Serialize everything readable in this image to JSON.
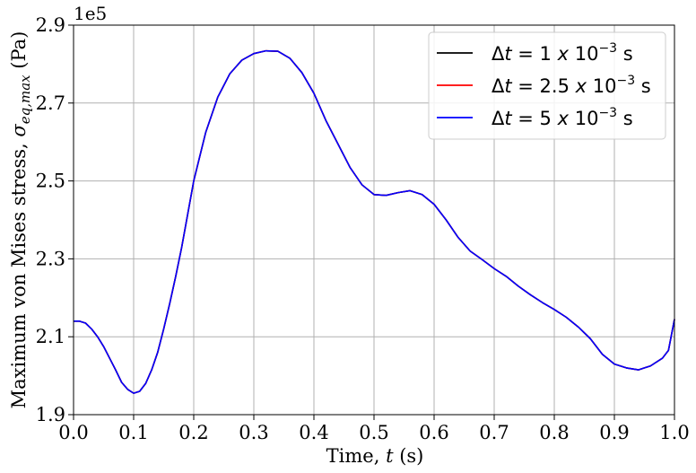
{
  "chart_data": {
    "type": "line",
    "xlabel": "Time, t (s)",
    "ylabel": "Maximum von Mises stress, σ_eq,max (Pa)",
    "xlim": [
      0.0,
      1.0
    ],
    "ylim": [
      190000,
      290000
    ],
    "x_ticks": [
      0.0,
      0.1,
      0.2,
      0.3,
      0.4,
      0.5,
      0.6,
      0.7,
      0.8,
      0.9,
      1.0
    ],
    "x_tick_labels": [
      "0.0",
      "0.1",
      "0.2",
      "0.3",
      "0.4",
      "0.5",
      "0.6",
      "0.7",
      "0.8",
      "0.9",
      "1.0"
    ],
    "y_ticks": [
      190000,
      210000,
      230000,
      250000,
      270000,
      290000
    ],
    "y_tick_labels": [
      "1.9",
      "2.1",
      "2.3",
      "2.5",
      "2.7",
      "2.9"
    ],
    "y_offset_label": "1e5",
    "grid": true,
    "legend_position": "top-right",
    "series": [
      {
        "name": "Δt = 1 x 10⁻³ s",
        "color": "#000000"
      },
      {
        "name": "Δt = 2.5 x 10⁻³ s",
        "color": "#ff0000"
      },
      {
        "name": "Δt = 5 x 10⁻³ s",
        "color": "#0000ff"
      }
    ],
    "x": [
      0.0,
      0.01,
      0.02,
      0.03,
      0.04,
      0.05,
      0.06,
      0.07,
      0.08,
      0.09,
      0.1,
      0.11,
      0.12,
      0.13,
      0.14,
      0.15,
      0.16,
      0.17,
      0.18,
      0.19,
      0.2,
      0.22,
      0.24,
      0.26,
      0.28,
      0.3,
      0.32,
      0.34,
      0.36,
      0.38,
      0.4,
      0.42,
      0.44,
      0.46,
      0.48,
      0.5,
      0.52,
      0.54,
      0.56,
      0.58,
      0.6,
      0.62,
      0.64,
      0.66,
      0.68,
      0.7,
      0.72,
      0.74,
      0.76,
      0.78,
      0.8,
      0.82,
      0.84,
      0.86,
      0.88,
      0.9,
      0.92,
      0.94,
      0.95,
      0.96,
      0.98,
      0.99,
      1.0
    ],
    "values": [
      214000,
      214000,
      213500,
      212000,
      210000,
      207500,
      204500,
      201500,
      198300,
      196500,
      195500,
      196000,
      198000,
      201500,
      206000,
      212000,
      218500,
      225500,
      233000,
      241500,
      250000,
      262500,
      271500,
      277500,
      281000,
      282700,
      283400,
      283300,
      281500,
      277800,
      272500,
      265500,
      259500,
      253500,
      249000,
      246500,
      246300,
      247000,
      247500,
      246500,
      244000,
      240000,
      235500,
      232000,
      229800,
      227500,
      225500,
      223000,
      220800,
      218800,
      217000,
      215000,
      212500,
      209500,
      205500,
      203000,
      202000,
      201500,
      202000,
      202500,
      204500,
      206500,
      214500
    ]
  }
}
